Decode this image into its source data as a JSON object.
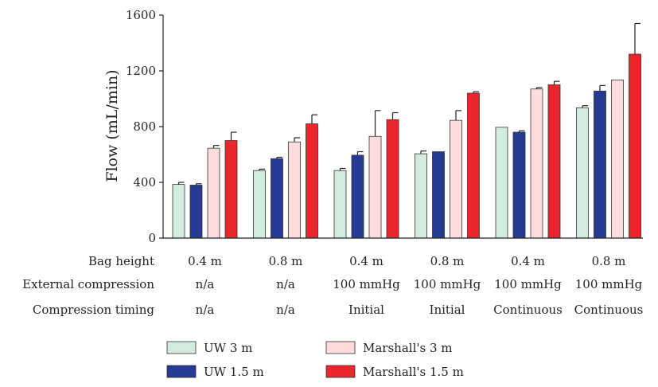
{
  "chart_data": {
    "type": "bar",
    "ylabel": "Flow (mL/min)",
    "ylim": [
      0,
      1600
    ],
    "yticks": [
      0,
      400,
      800,
      1200,
      1600
    ],
    "grid": false,
    "legend_position": "bottom",
    "categories": [
      {
        "bag_height": "0.4 m",
        "external_compression": "n/a",
        "compression_timing": "n/a"
      },
      {
        "bag_height": "0.8 m",
        "external_compression": "n/a",
        "compression_timing": "n/a"
      },
      {
        "bag_height": "0.4 m",
        "external_compression": "100 mmHg",
        "compression_timing": "Initial"
      },
      {
        "bag_height": "0.8 m",
        "external_compression": "100 mmHg",
        "compression_timing": "Initial"
      },
      {
        "bag_height": "0.4 m",
        "external_compression": "100 mmHg",
        "compression_timing": "Continuous"
      },
      {
        "bag_height": "0.8 m",
        "external_compression": "100 mmHg",
        "compression_timing": "Continuous"
      }
    ],
    "row_labels": {
      "bag_height": "Bag height",
      "external_compression": "External compression",
      "compression_timing": "Compression timing"
    },
    "series": [
      {
        "name": "UW 3 m",
        "color": "#d4ece0",
        "values": [
          385,
          485,
          485,
          605,
          795,
          935
        ],
        "errors": [
          15,
          10,
          15,
          20,
          0,
          15
        ]
      },
      {
        "name": "UW 1.5 m",
        "color": "#263a94",
        "values": [
          380,
          570,
          595,
          620,
          760,
          1055
        ],
        "errors": [
          10,
          10,
          25,
          0,
          10,
          40
        ]
      },
      {
        "name": "Marshall's 3 m",
        "color": "#fcdcdc",
        "values": [
          645,
          690,
          730,
          845,
          1070,
          1135
        ],
        "errors": [
          20,
          30,
          185,
          70,
          10,
          0
        ]
      },
      {
        "name": "Marshall's 1.5 m",
        "color": "#e8262b",
        "values": [
          700,
          820,
          850,
          1040,
          1100,
          1320
        ],
        "errors": [
          60,
          65,
          50,
          10,
          25,
          220
        ]
      }
    ]
  }
}
